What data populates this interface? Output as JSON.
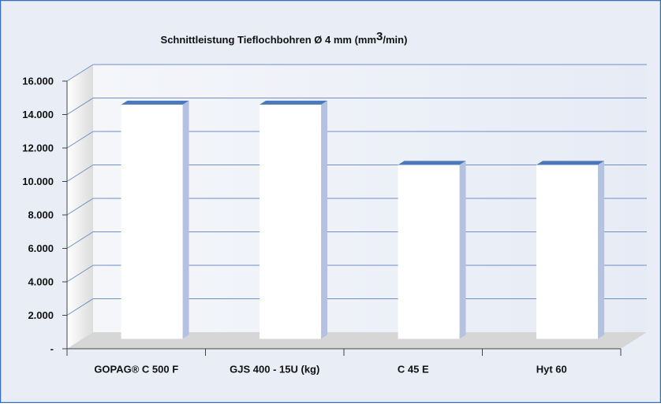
{
  "chart_data": {
    "type": "bar3d",
    "title": [
      "Schnittleistung Tieflochbohren Ø 4 mm (mm",
      "3",
      "/min)"
    ],
    "categories": [
      "GOPAG® C 500 F",
      "GJS 400 - 15U (kg)",
      "C 45 E",
      "Hyt 60"
    ],
    "values": [
      14000,
      14000,
      10400,
      10400
    ],
    "color": "#ffffff",
    "ylim": [
      0,
      16000
    ],
    "yticks": [
      {
        "value": 0,
        "label": "-"
      },
      {
        "value": 2000,
        "label": "2.000"
      },
      {
        "value": 4000,
        "label": "4.000"
      },
      {
        "value": 6000,
        "label": "6.000"
      },
      {
        "value": 8000,
        "label": "8.000"
      },
      {
        "value": 10000,
        "label": "10.000"
      },
      {
        "value": 12000,
        "label": "12.000"
      },
      {
        "value": 14000,
        "label": "14.000"
      },
      {
        "value": 16000,
        "label": "16.000"
      }
    ],
    "grid": true
  }
}
